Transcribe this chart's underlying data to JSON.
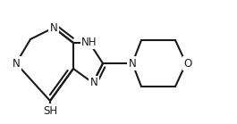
{
  "background_color": "#ffffff",
  "line_color": "#1a1a1a",
  "text_color": "#1a1a1a",
  "line_width": 1.5,
  "font_size": 8.5,
  "figsize": [
    2.65,
    1.39
  ],
  "dpi": 100,
  "xlim": [
    0,
    265
  ],
  "ylim": [
    0,
    139
  ]
}
